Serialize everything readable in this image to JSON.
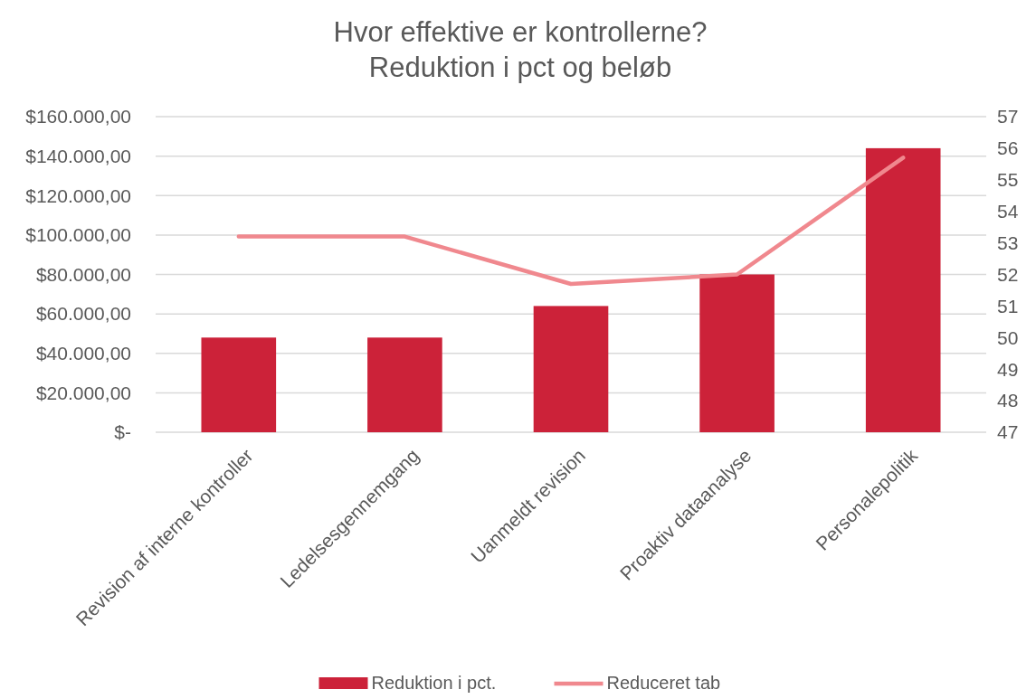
{
  "chart_data": {
    "type": "bar",
    "title": "Hvor effektive er kontrollerne?\nReduktion i pct og beløb",
    "categories": [
      "Revision af interne kontroller",
      "Ledelsesgennemgang",
      "Uanmeldt revision",
      "Proaktiv dataanalyse",
      "Personalepolitik"
    ],
    "series": [
      {
        "name": "Reduktion i pct.",
        "color": "#cc2239",
        "values": [
          48000,
          48000,
          64000,
          80000,
          144000
        ]
      },
      {
        "name": "Reduceret tab",
        "type": "line",
        "axis": "y2",
        "color": "#f0888e",
        "values": [
          53.2,
          53.2,
          51.7,
          52.0,
          55.7
        ]
      }
    ],
    "ylim": [
      0,
      160000
    ],
    "yticks": [
      {
        "value": 0,
        "label": "$-"
      },
      {
        "value": 20000,
        "label": "$20.000,00"
      },
      {
        "value": 40000,
        "label": "$40.000,00"
      },
      {
        "value": 60000,
        "label": "$60.000,00"
      },
      {
        "value": 80000,
        "label": "$80.000,00"
      },
      {
        "value": 100000,
        "label": "$100.000,00"
      },
      {
        "value": 120000,
        "label": "$120.000,00"
      },
      {
        "value": 140000,
        "label": "$140.000,00"
      },
      {
        "value": 160000,
        "label": "$160.000,00"
      }
    ],
    "y2lim": [
      47,
      57
    ],
    "y2ticks": [
      47,
      48,
      49,
      50,
      51,
      52,
      53,
      54,
      55,
      56,
      57
    ],
    "grid": "y",
    "legend": "bottom"
  }
}
